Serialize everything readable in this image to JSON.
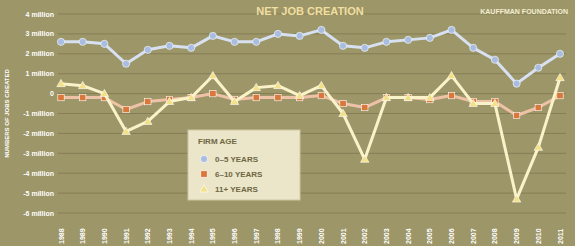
{
  "chart_data": {
    "type": "line",
    "title": "NET JOB CREATION",
    "annotations": [
      "KAUFFMAN FOUNDATION"
    ],
    "y_label": "NUMBERS OF JOBS CREATED",
    "legend_title": "FIRM AGE",
    "legend": "bottom",
    "grid": true,
    "categories": [
      "1988",
      "1989",
      "1990",
      "1991",
      "1992",
      "1993",
      "1994",
      "1995",
      "1996",
      "1997",
      "1998",
      "1999",
      "2000",
      "2001",
      "2002",
      "2003",
      "2004",
      "2005",
      "2006",
      "2007",
      "2008",
      "2009",
      "2010",
      "2011"
    ],
    "ylim": [
      -6000000,
      4000000
    ],
    "yticks": [
      {
        "value": 4000000,
        "label": "4 million"
      },
      {
        "value": 3000000,
        "label": "3 million"
      },
      {
        "value": 2000000,
        "label": "2 million"
      },
      {
        "value": 1000000,
        "label": "1 million"
      },
      0,
      {
        "value": -1000000,
        "label": "-1 million"
      },
      {
        "value": -2000000,
        "label": "-2 million"
      },
      {
        "value": -3000000,
        "label": "-3 million"
      },
      {
        "value": -4000000,
        "label": "-4 million"
      },
      {
        "value": -5000000,
        "label": "-5 million"
      },
      {
        "value": -6000000,
        "label": "-6 million"
      }
    ],
    "series": [
      {
        "name": "0–5 YEARS",
        "color": "#a8bde0",
        "marker": "circle",
        "values": [
          2600000,
          2600000,
          2500000,
          1500000,
          2200000,
          2400000,
          2300000,
          2900000,
          2600000,
          2600000,
          3000000,
          2900000,
          3200000,
          2400000,
          2300000,
          2600000,
          2700000,
          2800000,
          3200000,
          2300000,
          1700000,
          500000,
          1300000,
          2000000
        ]
      },
      {
        "name": "6–10 YEARS",
        "color": "#d9783a",
        "marker": "square",
        "values": [
          -200000,
          -200000,
          -200000,
          -800000,
          -400000,
          -300000,
          -200000,
          0,
          -300000,
          -200000,
          -200000,
          -200000,
          -100000,
          -500000,
          -700000,
          -200000,
          -200000,
          -300000,
          -100000,
          -400000,
          -400000,
          -1100000,
          -700000,
          -100000
        ]
      },
      {
        "name": "11+ YEARS",
        "color": "#f3e187",
        "marker": "triangle",
        "values": [
          500000,
          400000,
          0,
          -1900000,
          -1400000,
          -400000,
          -200000,
          900000,
          -400000,
          300000,
          400000,
          -100000,
          400000,
          -1000000,
          -3300000,
          -200000,
          -200000,
          -200000,
          900000,
          -500000,
          -500000,
          -5300000,
          -2700000,
          800000
        ]
      }
    ]
  }
}
